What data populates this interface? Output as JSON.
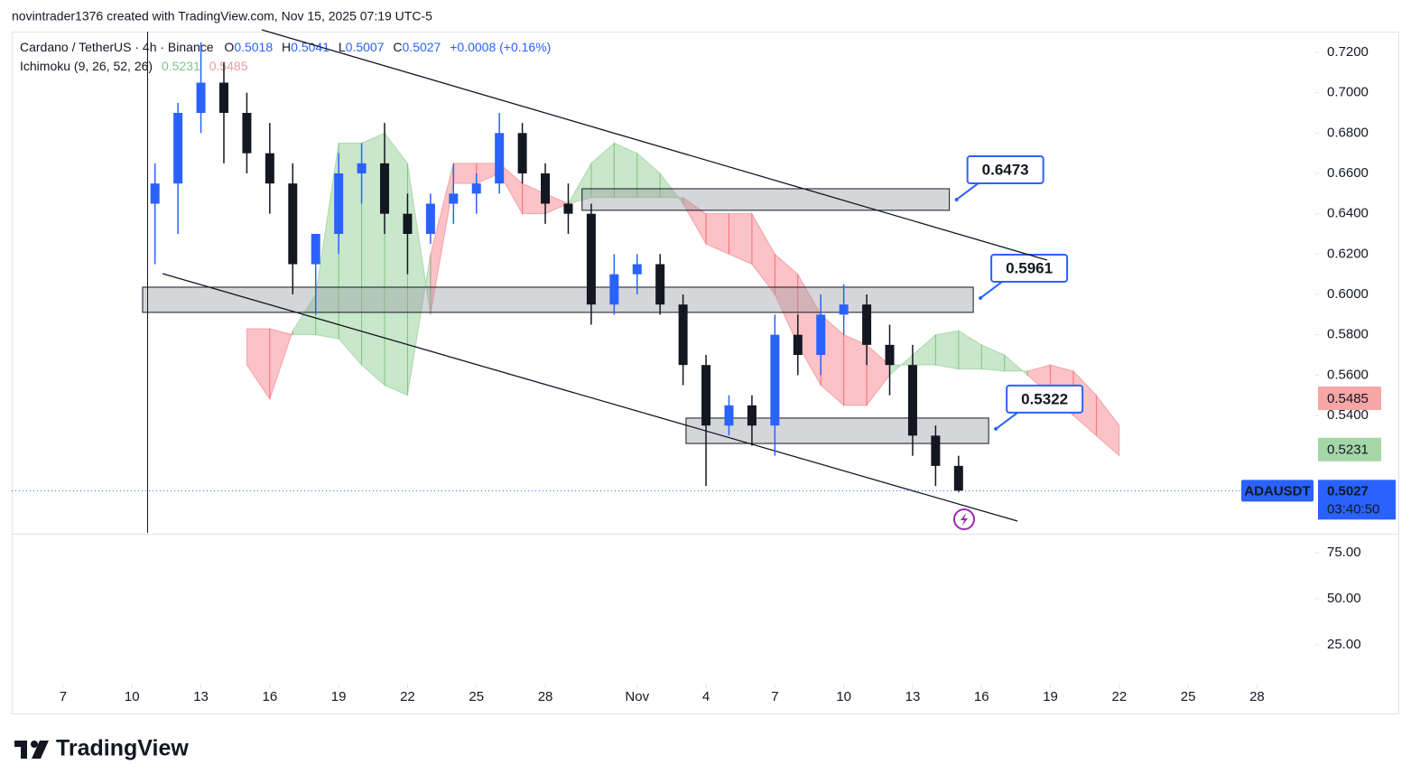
{
  "header": {
    "attribution": "novintrader1376 created with TradingView.com, Nov 15, 2025 07:19 UTC-5",
    "symbol": "Cardano / TetherUS · 4h · Binance",
    "ohlc": [
      {
        "key": "O",
        "value": 0.5018
      },
      {
        "key": "H",
        "value": 0.5041
      },
      {
        "key": "L",
        "value": 0.5007
      },
      {
        "key": "C",
        "value": 0.5027
      }
    ],
    "change": "+0.0008 (+0.16%)",
    "indicator": "Ichimoku (9, 26, 52, 26)",
    "indicator_values": [
      0.5231,
      0.5485
    ]
  },
  "chart_data": {
    "type": "candlestick",
    "x": [
      4,
      5,
      6,
      7,
      8,
      9,
      10,
      11,
      12,
      13,
      14,
      15,
      16,
      17,
      18,
      19,
      20,
      21,
      22,
      23,
      24,
      25,
      26,
      27,
      28,
      29,
      30,
      31,
      32,
      33,
      34,
      35,
      36,
      37,
      38,
      39
    ],
    "open": [
      0.645,
      0.655,
      0.69,
      0.705,
      0.69,
      0.67,
      0.655,
      0.615,
      0.63,
      0.66,
      0.665,
      0.64,
      0.63,
      0.645,
      0.65,
      0.655,
      0.68,
      0.66,
      0.645,
      0.64,
      0.595,
      0.61,
      0.615,
      0.595,
      0.565,
      0.535,
      0.545,
      0.535,
      0.58,
      0.57,
      0.59,
      0.595,
      0.575,
      0.565,
      0.53,
      0.515
    ],
    "high": [
      0.665,
      0.695,
      0.725,
      0.715,
      0.7,
      0.685,
      0.665,
      0.63,
      0.67,
      0.675,
      0.685,
      0.65,
      0.65,
      0.665,
      0.66,
      0.69,
      0.685,
      0.665,
      0.655,
      0.645,
      0.62,
      0.62,
      0.62,
      0.6,
      0.57,
      0.55,
      0.55,
      0.59,
      0.59,
      0.6,
      0.605,
      0.6,
      0.585,
      0.575,
      0.535,
      0.52
    ],
    "low": [
      0.615,
      0.63,
      0.68,
      0.665,
      0.66,
      0.64,
      0.6,
      0.59,
      0.62,
      0.645,
      0.63,
      0.61,
      0.625,
      0.635,
      0.64,
      0.65,
      0.655,
      0.635,
      0.63,
      0.585,
      0.59,
      0.6,
      0.59,
      0.555,
      0.505,
      0.53,
      0.525,
      0.52,
      0.56,
      0.56,
      0.58,
      0.565,
      0.55,
      0.52,
      0.505,
      0.502
    ],
    "close": [
      0.655,
      0.69,
      0.705,
      0.69,
      0.67,
      0.655,
      0.615,
      0.63,
      0.66,
      0.665,
      0.64,
      0.63,
      0.645,
      0.65,
      0.655,
      0.68,
      0.66,
      0.645,
      0.64,
      0.595,
      0.61,
      0.615,
      0.595,
      0.565,
      0.535,
      0.545,
      0.535,
      0.58,
      0.57,
      0.59,
      0.595,
      0.575,
      0.565,
      0.53,
      0.515,
      0.5027
    ],
    "up_color": "#2962ff",
    "down_color": "#131722",
    "cloud": {
      "x": [
        8,
        9,
        10,
        11,
        12,
        13,
        14,
        15,
        16,
        17,
        18,
        19,
        20,
        21,
        22,
        23,
        24,
        25,
        26,
        27,
        28,
        29,
        30,
        31,
        32,
        33,
        34,
        35,
        36,
        37,
        38,
        39,
        40,
        41,
        42,
        43,
        44,
        45,
        46
      ],
      "span_a": [
        0.565,
        0.548,
        0.582,
        0.6,
        0.675,
        0.675,
        0.68,
        0.665,
        0.59,
        0.655,
        0.655,
        0.66,
        0.64,
        0.64,
        0.645,
        0.665,
        0.675,
        0.67,
        0.66,
        0.645,
        0.625,
        0.62,
        0.615,
        0.6,
        0.575,
        0.555,
        0.545,
        0.545,
        0.56,
        0.57,
        0.58,
        0.582,
        0.575,
        0.57,
        0.56,
        0.55,
        0.54,
        0.53,
        0.52
      ],
      "span_b": [
        0.583,
        0.583,
        0.58,
        0.58,
        0.578,
        0.565,
        0.555,
        0.55,
        0.62,
        0.665,
        0.665,
        0.665,
        0.655,
        0.65,
        0.645,
        0.648,
        0.648,
        0.648,
        0.648,
        0.648,
        0.64,
        0.64,
        0.64,
        0.62,
        0.61,
        0.59,
        0.58,
        0.575,
        0.565,
        0.565,
        0.565,
        0.563,
        0.563,
        0.562,
        0.562,
        0.565,
        0.562,
        0.55,
        0.535
      ],
      "bull_color": "#4caf50",
      "bear_color": "#f23645"
    },
    "channel": [
      {
        "x": [
          8.65,
          42.86
        ],
        "y": [
          0.7312,
          0.617
        ]
      },
      {
        "x": [
          4.33,
          41.57
        ],
        "y": [
          0.6103,
          0.4876
        ]
      }
    ],
    "zones": [
      {
        "x": [
          22.6,
          38.6
        ],
        "y": [
          0.6417,
          0.6524
        ],
        "label": "0.6473"
      },
      {
        "x": [
          3.46,
          39.64
        ],
        "y": [
          0.5911,
          0.6036
        ],
        "label": "0.5961"
      },
      {
        "x": [
          27.13,
          40.31
        ],
        "y": [
          0.5261,
          0.5387
        ],
        "label": "0.5322"
      }
    ],
    "xlim": [
      -2.24,
      54.46
    ],
    "xticks": [
      {
        "value": 0,
        "label": "7"
      },
      {
        "value": 3,
        "label": "10"
      },
      {
        "value": 6,
        "label": "13"
      },
      {
        "value": 9,
        "label": "16"
      },
      {
        "value": 12,
        "label": "19"
      },
      {
        "value": 15,
        "label": "22"
      },
      {
        "value": 18,
        "label": "25"
      },
      {
        "value": 21,
        "label": "28"
      },
      {
        "value": 25,
        "label": "Nov"
      },
      {
        "value": 28,
        "label": "4"
      },
      {
        "value": 31,
        "label": "7"
      },
      {
        "value": 34,
        "label": "10"
      },
      {
        "value": 37,
        "label": "13"
      },
      {
        "value": 40,
        "label": "16"
      },
      {
        "value": 43,
        "label": "19"
      },
      {
        "value": 46,
        "label": "22"
      },
      {
        "value": 49,
        "label": "25"
      },
      {
        "value": 52,
        "label": "28"
      }
    ],
    "ylim": [
      0.4818,
      0.7303
    ],
    "yticks": [
      {
        "value": 0.54,
        "label": "0.5400"
      },
      {
        "value": 0.56,
        "label": "0.5600"
      },
      {
        "value": 0.58,
        "label": "0.5800"
      },
      {
        "value": 0.6,
        "label": "0.6000"
      },
      {
        "value": 0.62,
        "label": "0.6200"
      },
      {
        "value": 0.64,
        "label": "0.6400"
      },
      {
        "value": 0.66,
        "label": "0.6600"
      },
      {
        "value": 0.68,
        "label": "0.6800"
      },
      {
        "value": 0.7,
        "label": "0.7000"
      },
      {
        "value": 0.72,
        "label": "0.7200"
      }
    ],
    "price_markers": [
      {
        "value": 0.5485,
        "color": "#f7a6a6"
      },
      {
        "value": 0.5231,
        "color": "#a5d6a7"
      }
    ],
    "last": {
      "symbol": "ADAUSDT",
      "value": 0.5027,
      "countdown": "03:40:50",
      "color": "#2962ff"
    },
    "lower_pane": {
      "ylim": [
        6.4,
        84.8
      ],
      "yticks": [
        {
          "value": 25,
          "label": "25.00"
        },
        {
          "value": 50,
          "label": "50.00"
        },
        {
          "value": 75,
          "label": "75.00"
        }
      ]
    }
  },
  "footer": {
    "brand": "TradingView"
  }
}
